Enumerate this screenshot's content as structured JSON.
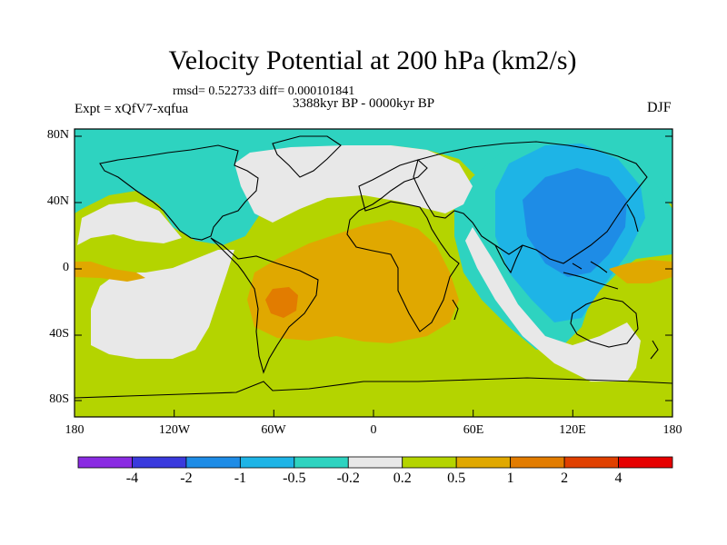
{
  "title": "Velocity Potential at 200 hPa (km2/s)",
  "stats": "rmsd= 0.522733 diff= 0.000101841",
  "period": "3388kyr BP - 0000kyr BP",
  "experiment": "Expt = xQfV7-xqfua",
  "season": "DJF",
  "lat_labels": [
    "80N",
    "40N",
    "0",
    "40S",
    "80S"
  ],
  "lon_labels": [
    "180",
    "120W",
    "60W",
    "0",
    "60E",
    "120E",
    "180"
  ],
  "colorbar": {
    "colors": [
      "#8a2be2",
      "#3a3add",
      "#1e8ce6",
      "#1eb4e6",
      "#2ed3c0",
      "#e8e8e8",
      "#b4d400",
      "#e0a800",
      "#e27c00",
      "#e04000",
      "#e60000"
    ],
    "labels": [
      "-4",
      "-2",
      "-1",
      "-0.5",
      "-0.2",
      "0.2",
      "0.5",
      "1",
      "2",
      "4"
    ]
  },
  "fill_colors": {
    "neg_05": "#2ed3c0",
    "neg_1": "#1eb4e6",
    "neg_2": "#1e8ce6",
    "neutral": "#e8e8e8",
    "pos_02": "#b4d400",
    "pos_05": "#e0a800",
    "pos_1": "#e27c00"
  }
}
